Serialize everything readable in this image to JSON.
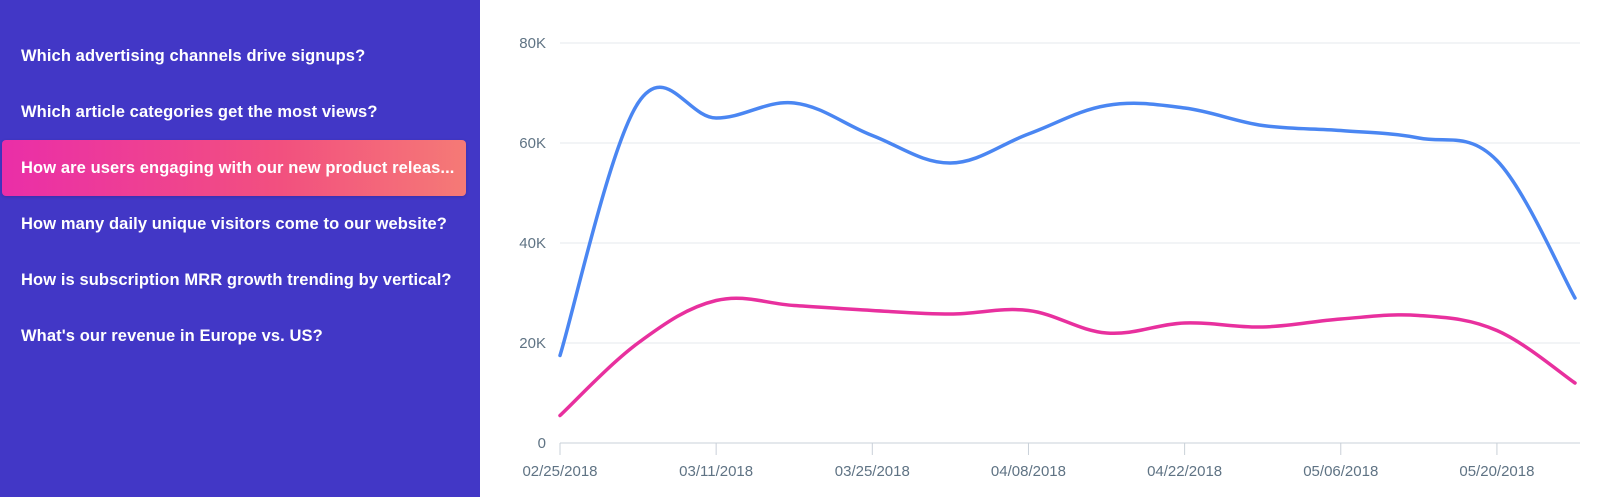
{
  "sidebar": {
    "questions": [
      {
        "label": "Which advertising channels drive signups?",
        "active": false
      },
      {
        "label": "Which article categories get the most views?",
        "active": false
      },
      {
        "label": "How are users engaging with our new product releas...",
        "active": true
      },
      {
        "label": "How many daily unique visitors come to our website?",
        "active": false
      },
      {
        "label": "How is subscription MRR growth trending by vertical?",
        "active": false
      },
      {
        "label": "What's our revenue in Europe vs. US?",
        "active": false
      }
    ]
  },
  "colors": {
    "sidebar_bg": "#4237c6",
    "series_blue": "#4a86f2",
    "series_pink": "#e8309e",
    "axis_text": "#5f7384",
    "grid": "#e6e9ee"
  },
  "chart_data": {
    "type": "line",
    "ylim": [
      0,
      80000
    ],
    "yticks": [
      "0",
      "20K",
      "40K",
      "60K",
      "80K"
    ],
    "xticks": [
      "02/25/2018",
      "03/11/2018",
      "03/25/2018",
      "04/08/2018",
      "04/22/2018",
      "05/06/2018",
      "05/20/2018"
    ],
    "x": [
      "02/25/2018",
      "03/04/2018",
      "03/11/2018",
      "03/18/2018",
      "03/25/2018",
      "04/01/2018",
      "04/08/2018",
      "04/15/2018",
      "04/22/2018",
      "04/29/2018",
      "05/06/2018",
      "05/13/2018",
      "05/20/2018",
      "05/27/2018"
    ],
    "series": [
      {
        "color": "#4a86f2",
        "values": [
          17500,
          68000,
          65000,
          68000,
          61500,
          56000,
          61800,
          67500,
          67000,
          63500,
          62500,
          61000,
          56500,
          29000
        ]
      },
      {
        "color": "#e8309e",
        "values": [
          5500,
          20000,
          28500,
          27500,
          26500,
          25800,
          26500,
          22000,
          24000,
          23200,
          24800,
          25500,
          22500,
          12000
        ]
      }
    ],
    "grid": true
  }
}
